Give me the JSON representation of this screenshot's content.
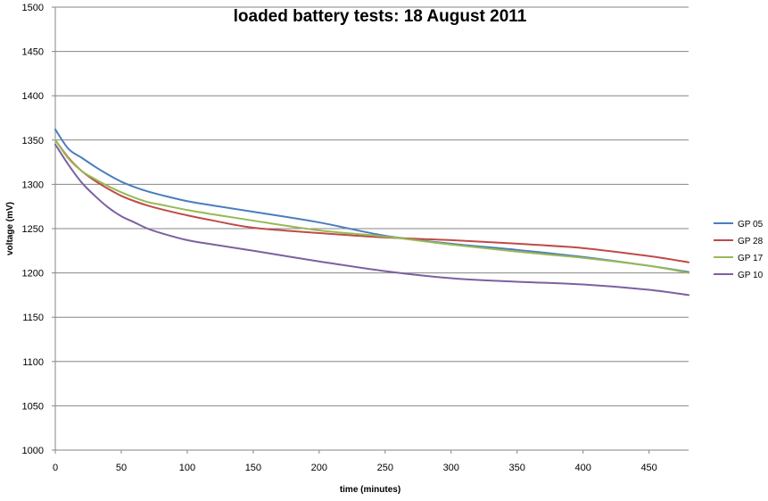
{
  "chart_data": {
    "type": "line",
    "title": "loaded battery tests: 18 August 2011",
    "xlabel": "time (minutes)",
    "ylabel": "voltage (mV)",
    "xlim": [
      0,
      480
    ],
    "ylim": [
      1000,
      1500
    ],
    "xticks": [
      0,
      50,
      100,
      150,
      200,
      250,
      300,
      350,
      400,
      450
    ],
    "yticks": [
      1000,
      1050,
      1100,
      1150,
      1200,
      1250,
      1300,
      1350,
      1400,
      1450,
      1500
    ],
    "grid": "horizontal",
    "legend_position": "right",
    "x": [
      0,
      10,
      20,
      30,
      40,
      50,
      60,
      70,
      80,
      100,
      120,
      150,
      200,
      250,
      300,
      350,
      400,
      450,
      480
    ],
    "series": [
      {
        "name": "GP 05",
        "color": "#4a7ebb",
        "values": [
          1362,
          1340,
          1330,
          1320,
          1311,
          1303,
          1297,
          1292,
          1288,
          1281,
          1276,
          1269,
          1257,
          1242,
          1233,
          1226,
          1218,
          1208,
          1201
        ]
      },
      {
        "name": "GP 28",
        "color": "#be4b48",
        "values": [
          1350,
          1330,
          1315,
          1304,
          1295,
          1287,
          1281,
          1276,
          1272,
          1265,
          1259,
          1251,
          1245,
          1240,
          1237,
          1233,
          1228,
          1219,
          1212
        ]
      },
      {
        "name": "GP 17",
        "color": "#98b954",
        "values": [
          1350,
          1329,
          1315,
          1306,
          1298,
          1291,
          1285,
          1280,
          1277,
          1271,
          1266,
          1259,
          1248,
          1241,
          1232,
          1224,
          1217,
          1208,
          1200
        ]
      },
      {
        "name": "GP 10",
        "color": "#7d60a0",
        "values": [
          1345,
          1322,
          1302,
          1287,
          1274,
          1264,
          1257,
          1250,
          1245,
          1237,
          1232,
          1225,
          1213,
          1202,
          1194,
          1190,
          1187,
          1181,
          1175
        ]
      }
    ]
  }
}
